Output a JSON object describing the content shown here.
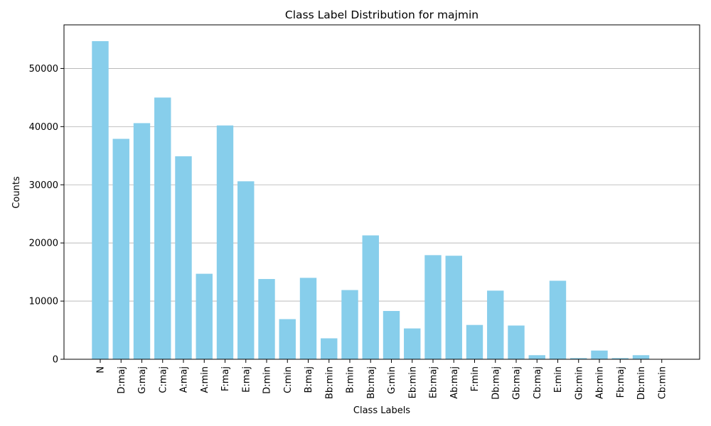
{
  "chart_data": {
    "type": "bar",
    "title": "Class Label Distribution for majmin",
    "xlabel": "Class Labels",
    "ylabel": "Counts",
    "categories": [
      "N",
      "D:maj",
      "G:maj",
      "C:maj",
      "A:maj",
      "A:min",
      "F:maj",
      "E:maj",
      "D:min",
      "C:min",
      "B:maj",
      "Bb:min",
      "B:min",
      "Bb:maj",
      "G:min",
      "Eb:min",
      "Eb:maj",
      "Ab:maj",
      "F:min",
      "Db:maj",
      "Gb:maj",
      "Cb:maj",
      "E:min",
      "Gb:min",
      "Ab:min",
      "Fb:maj",
      "Db:min",
      "Cb:min"
    ],
    "values": [
      54700,
      37900,
      40600,
      45000,
      34900,
      14700,
      40200,
      30600,
      13800,
      6900,
      14000,
      3600,
      11900,
      21300,
      8300,
      5300,
      17900,
      17800,
      5900,
      11800,
      5800,
      700,
      13500,
      200,
      1500,
      200,
      700,
      50
    ],
    "ylim": [
      0,
      57500
    ],
    "yticks": [
      0,
      10000,
      20000,
      30000,
      40000,
      50000
    ],
    "grid": "y",
    "bar_color": "#87ceeb",
    "grid_color": "#b0b0b0"
  }
}
